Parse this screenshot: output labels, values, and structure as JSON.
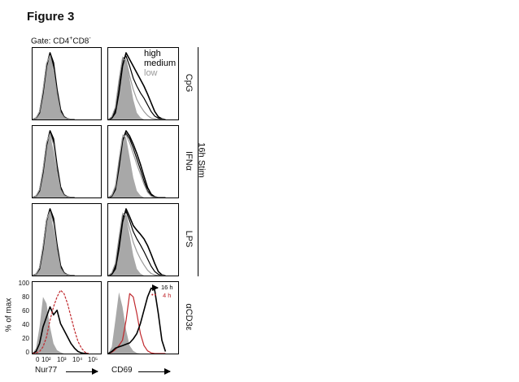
{
  "figure": {
    "title": "Figure 3",
    "gate": {
      "prefix": "Gate: CD4",
      "mid": "CD8",
      "sup_plus": "+",
      "sup_minus": "-"
    },
    "legend": {
      "high": "high",
      "medium": "medium",
      "low": "low"
    },
    "stim_label": "16h Stim",
    "rows": [
      "CpG",
      "IFNα",
      "LPS",
      "αCD3ε"
    ],
    "y_axis": {
      "label": "% of max",
      "ticks": [
        "100",
        "80",
        "60",
        "40",
        "20",
        "0"
      ]
    },
    "x_ticks": [
      "0",
      "10²",
      "10³",
      "10⁴",
      "10⁵"
    ],
    "x_labels": {
      "left": "Nur77",
      "right": "CD69"
    },
    "time_legend": {
      "t16": "16 h",
      "t4": "4 h"
    },
    "colors": {
      "fill": "#a8a8a8",
      "black": "#000000",
      "gray": "#9a9a9a",
      "red": "#c0282d"
    }
  },
  "chart_data": [
    {
      "type": "histogram-overlay",
      "row": "CpG",
      "marker": "Nur77",
      "x": [
        0,
        5,
        10,
        15,
        20,
        25,
        30,
        35,
        40,
        45,
        50,
        55,
        60
      ],
      "series": [
        {
          "name": "control",
          "style": "filled",
          "values": [
            0,
            2,
            12,
            45,
            85,
            95,
            70,
            35,
            10,
            3,
            1,
            0,
            0
          ]
        },
        {
          "name": "high",
          "values": [
            0,
            2,
            10,
            40,
            80,
            100,
            85,
            45,
            15,
            4,
            1,
            0,
            0
          ]
        },
        {
          "name": "medium",
          "values": [
            0,
            2,
            11,
            42,
            82,
            98,
            80,
            42,
            13,
            4,
            1,
            0,
            0
          ]
        },
        {
          "name": "low",
          "values": [
            0,
            2,
            12,
            44,
            84,
            96,
            75,
            38,
            11,
            3,
            1,
            0,
            0
          ]
        }
      ]
    },
    {
      "type": "histogram-overlay",
      "row": "CpG",
      "marker": "CD69",
      "x": [
        0,
        5,
        10,
        15,
        20,
        25,
        30,
        35,
        40,
        45,
        50,
        55,
        60,
        65,
        70,
        75,
        80
      ],
      "series": [
        {
          "name": "control",
          "style": "filled",
          "values": [
            0,
            5,
            20,
            60,
            95,
            90,
            60,
            30,
            10,
            3,
            0,
            0,
            0,
            0,
            0,
            0,
            0
          ]
        },
        {
          "name": "high",
          "values": [
            0,
            2,
            10,
            40,
            80,
            100,
            90,
            80,
            70,
            60,
            50,
            38,
            25,
            12,
            4,
            1,
            0
          ]
        },
        {
          "name": "medium",
          "values": [
            0,
            3,
            15,
            55,
            90,
            95,
            80,
            62,
            50,
            40,
            32,
            22,
            12,
            5,
            2,
            0,
            0
          ]
        },
        {
          "name": "low",
          "values": [
            0,
            4,
            18,
            58,
            92,
            88,
            65,
            45,
            30,
            20,
            12,
            6,
            2,
            1,
            0,
            0,
            0
          ]
        }
      ]
    },
    {
      "type": "histogram-overlay",
      "row": "IFNα",
      "marker": "Nur77",
      "x": [
        0,
        5,
        10,
        15,
        20,
        25,
        30,
        35,
        40,
        45,
        50,
        55,
        60
      ],
      "series": [
        {
          "name": "control",
          "style": "filled",
          "values": [
            0,
            2,
            12,
            45,
            85,
            95,
            70,
            35,
            10,
            3,
            1,
            0,
            0
          ]
        },
        {
          "name": "high",
          "values": [
            0,
            2,
            10,
            38,
            78,
            100,
            88,
            48,
            16,
            4,
            1,
            0,
            0
          ]
        },
        {
          "name": "medium",
          "values": [
            0,
            2,
            11,
            40,
            80,
            98,
            84,
            44,
            14,
            4,
            1,
            0,
            0
          ]
        },
        {
          "name": "low",
          "values": [
            0,
            2,
            12,
            42,
            82,
            96,
            80,
            40,
            12,
            3,
            1,
            0,
            0
          ]
        }
      ]
    },
    {
      "type": "histogram-overlay",
      "row": "IFNα",
      "marker": "CD69",
      "x": [
        0,
        5,
        10,
        15,
        20,
        25,
        30,
        35,
        40,
        45,
        50,
        55,
        60,
        65,
        70,
        75,
        80
      ],
      "series": [
        {
          "name": "control",
          "style": "filled",
          "values": [
            0,
            5,
            20,
            60,
            95,
            90,
            60,
            30,
            10,
            3,
            0,
            0,
            0,
            0,
            0,
            0,
            0
          ]
        },
        {
          "name": "high",
          "values": [
            0,
            2,
            12,
            45,
            85,
            100,
            92,
            80,
            66,
            50,
            32,
            15,
            5,
            1,
            0,
            0,
            0
          ]
        },
        {
          "name": "medium",
          "values": [
            0,
            3,
            14,
            50,
            88,
            96,
            88,
            74,
            58,
            42,
            25,
            10,
            3,
            1,
            0,
            0,
            0
          ]
        },
        {
          "name": "low",
          "values": [
            0,
            3,
            16,
            55,
            90,
            94,
            82,
            66,
            50,
            35,
            20,
            8,
            2,
            0,
            0,
            0,
            0
          ]
        }
      ]
    },
    {
      "type": "histogram-overlay",
      "row": "LPS",
      "marker": "Nur77",
      "x": [
        0,
        5,
        10,
        15,
        20,
        25,
        30,
        35,
        40,
        45,
        50,
        55,
        60
      ],
      "series": [
        {
          "name": "control",
          "style": "filled",
          "values": [
            0,
            2,
            12,
            45,
            85,
            95,
            70,
            35,
            10,
            3,
            1,
            0,
            0
          ]
        },
        {
          "name": "high",
          "values": [
            0,
            2,
            10,
            40,
            82,
            100,
            86,
            46,
            15,
            4,
            1,
            0,
            0
          ]
        },
        {
          "name": "medium",
          "values": [
            0,
            2,
            11,
            42,
            83,
            98,
            82,
            43,
            13,
            4,
            1,
            0,
            0
          ]
        },
        {
          "name": "low",
          "values": [
            0,
            2,
            12,
            44,
            84,
            96,
            78,
            39,
            11,
            3,
            1,
            0,
            0
          ]
        }
      ]
    },
    {
      "type": "histogram-overlay",
      "row": "LPS",
      "marker": "CD69",
      "x": [
        0,
        5,
        10,
        15,
        20,
        25,
        30,
        35,
        40,
        45,
        50,
        55,
        60,
        65,
        70,
        75,
        80
      ],
      "series": [
        {
          "name": "control",
          "style": "filled",
          "values": [
            0,
            5,
            20,
            60,
            95,
            90,
            60,
            30,
            10,
            3,
            0,
            0,
            0,
            0,
            0,
            0,
            0
          ]
        },
        {
          "name": "high",
          "values": [
            0,
            2,
            10,
            40,
            80,
            100,
            88,
            75,
            68,
            62,
            55,
            45,
            32,
            18,
            6,
            1,
            0
          ]
        },
        {
          "name": "medium",
          "values": [
            0,
            3,
            14,
            52,
            88,
            96,
            82,
            66,
            55,
            46,
            36,
            25,
            14,
            6,
            2,
            0,
            0
          ]
        },
        {
          "name": "low",
          "values": [
            0,
            4,
            18,
            56,
            92,
            90,
            70,
            50,
            36,
            25,
            16,
            8,
            3,
            1,
            0,
            0,
            0
          ]
        }
      ]
    },
    {
      "type": "histogram-overlay",
      "row": "αCD3ε",
      "marker": "Nur77",
      "x": [
        0,
        5,
        10,
        15,
        20,
        25,
        30,
        35,
        40,
        45,
        50,
        55,
        60,
        65,
        70,
        75,
        80
      ],
      "ylim": [
        0,
        100
      ],
      "series": [
        {
          "name": "control",
          "style": "filled",
          "values": [
            0,
            8,
            40,
            85,
            75,
            40,
            15,
            5,
            2,
            0,
            0,
            0,
            0,
            0,
            0,
            0,
            0
          ]
        },
        {
          "name": "16 h",
          "values": [
            0,
            3,
            15,
            40,
            55,
            70,
            58,
            65,
            45,
            35,
            25,
            15,
            8,
            3,
            1,
            0,
            0
          ]
        },
        {
          "name": "4 h",
          "style": "dashed",
          "values": [
            0,
            1,
            3,
            10,
            25,
            50,
            70,
            85,
            95,
            90,
            75,
            55,
            35,
            18,
            8,
            2,
            0
          ]
        }
      ]
    },
    {
      "type": "histogram-overlay",
      "row": "αCD3ε",
      "marker": "CD69",
      "x": [
        0,
        5,
        10,
        15,
        20,
        25,
        30,
        35,
        40,
        45,
        50,
        55,
        60,
        65,
        70,
        75,
        80
      ],
      "ylim": [
        0,
        100
      ],
      "series": [
        {
          "name": "control",
          "style": "filled",
          "values": [
            0,
            10,
            50,
            92,
            70,
            35,
            12,
            4,
            1,
            0,
            0,
            0,
            0,
            0,
            0,
            0,
            0
          ]
        },
        {
          "name": "4 h",
          "values": [
            0,
            2,
            6,
            12,
            20,
            50,
            90,
            85,
            60,
            30,
            12,
            4,
            1,
            0,
            0,
            0,
            0
          ]
        },
        {
          "name": "16 h",
          "values": [
            0,
            3,
            8,
            10,
            12,
            14,
            16,
            22,
            30,
            45,
            65,
            85,
            98,
            95,
            60,
            20,
            3
          ]
        }
      ]
    }
  ]
}
